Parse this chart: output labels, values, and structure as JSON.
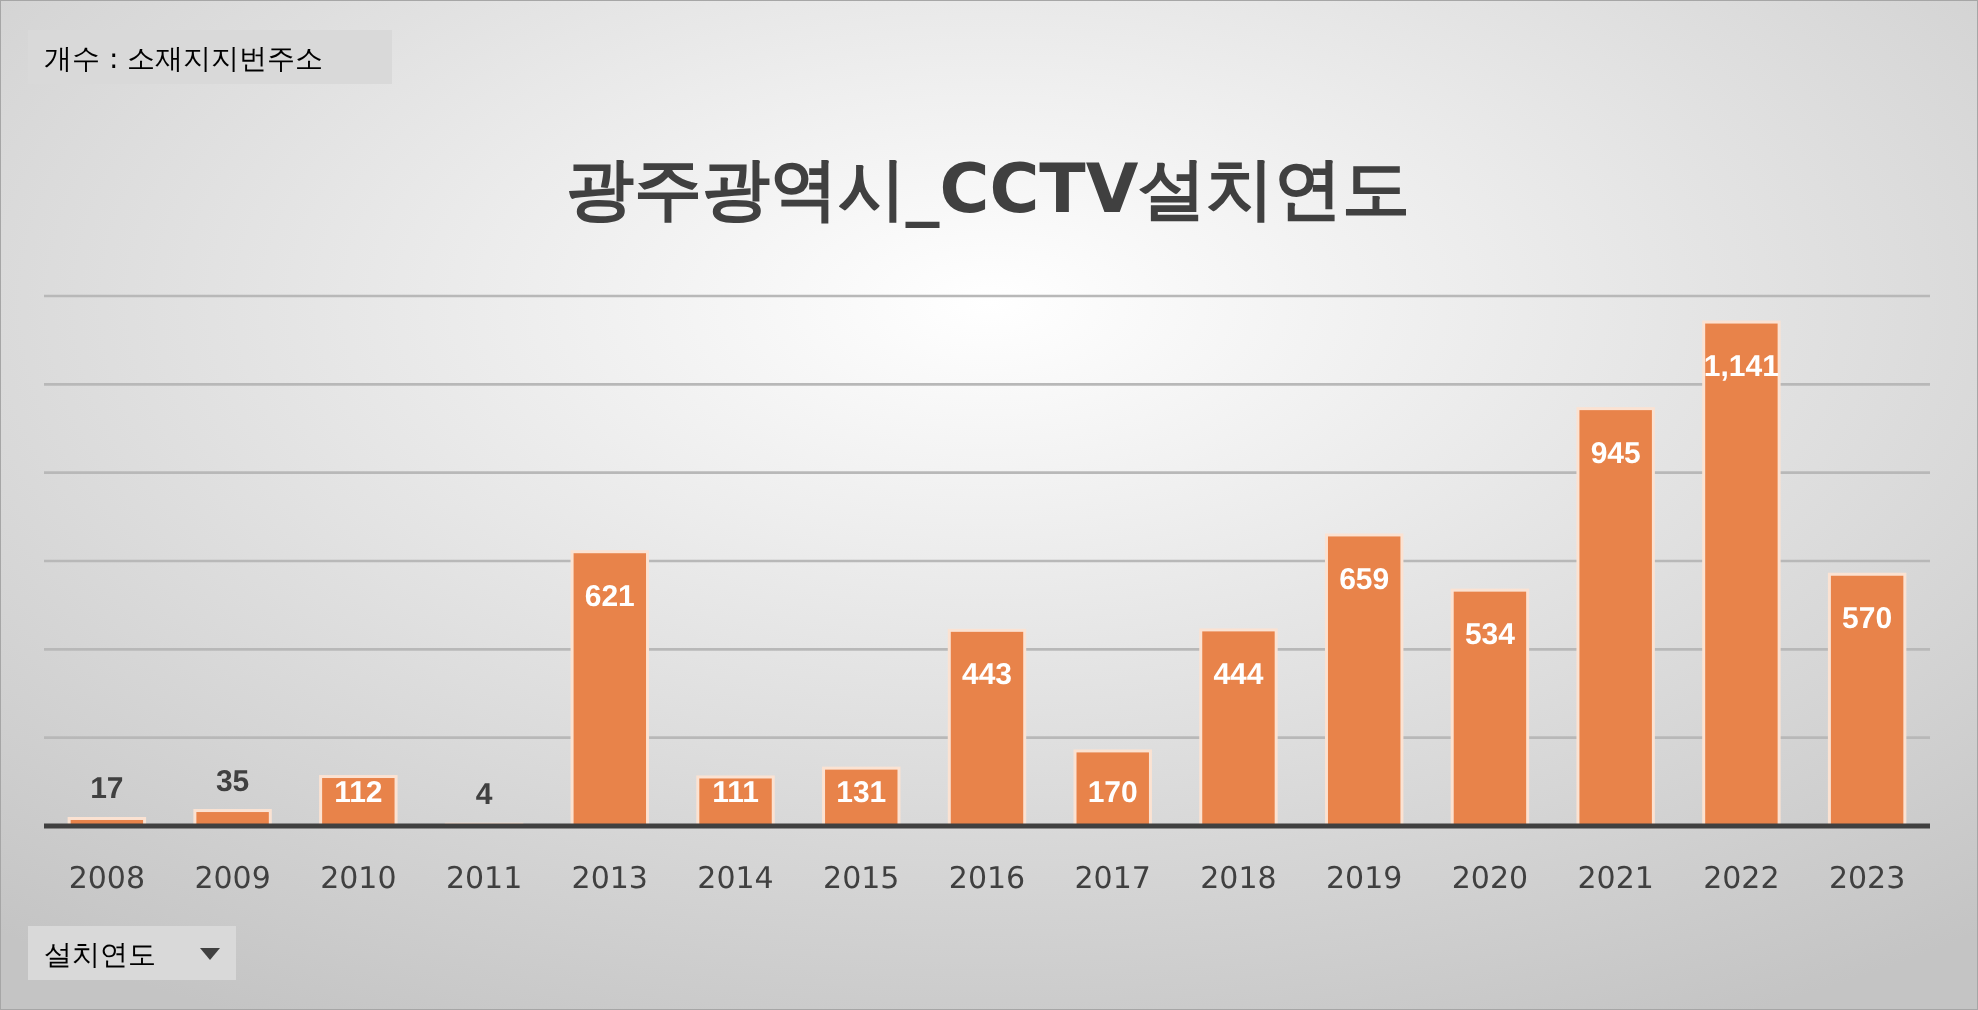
{
  "chart_data": {
    "type": "bar",
    "title": "광주광역시_CCTV설치연도",
    "categories": [
      "2008",
      "2009",
      "2010",
      "2011",
      "2013",
      "2014",
      "2015",
      "2016",
      "2017",
      "2018",
      "2019",
      "2020",
      "2021",
      "2022",
      "2023"
    ],
    "values": [
      17,
      35,
      112,
      4,
      621,
      111,
      131,
      443,
      170,
      444,
      659,
      534,
      945,
      1141,
      570
    ],
    "value_labels": [
      "17",
      "35",
      "112",
      "4",
      "621",
      "111",
      "131",
      "443",
      "170",
      "444",
      "659",
      "534",
      "945",
      "1,141",
      "570"
    ],
    "color": "#e8834a",
    "ylim": [
      0,
      1200
    ],
    "yticks": [
      {
        "value": 0,
        "label": null
      },
      {
        "value": 200,
        "label": null
      },
      {
        "value": 400,
        "label": null
      },
      {
        "value": 600,
        "label": null
      },
      {
        "value": 800,
        "label": null
      },
      {
        "value": 1000,
        "label": null
      },
      {
        "value": 1200,
        "label": null
      }
    ],
    "grid": "y",
    "tick_labels": "x",
    "annotations": [
      "개수 : 소재지지번주소",
      "설치연도"
    ]
  }
}
